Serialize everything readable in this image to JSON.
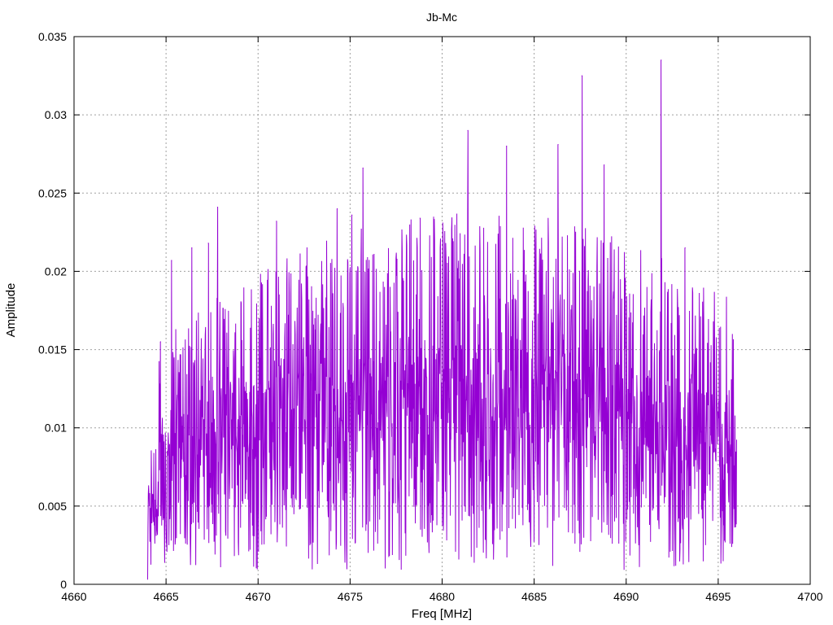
{
  "chart_data": {
    "type": "line",
    "title": "Jb-Mc",
    "xlabel": "Freq [MHz]",
    "ylabel": "Amplitude",
    "xlim": [
      4660,
      4700
    ],
    "ylim": [
      0,
      0.035
    ],
    "x_ticks": [
      4660,
      4665,
      4670,
      4675,
      4680,
      4685,
      4690,
      4695,
      4700
    ],
    "x_tick_labels": [
      "4660",
      "4665",
      "4670",
      "4675",
      "4680",
      "4685",
      "4690",
      "4695",
      "4700"
    ],
    "y_ticks": [
      0,
      0.005,
      0.01,
      0.015,
      0.02,
      0.025,
      0.03,
      0.035
    ],
    "y_tick_labels": [
      "0",
      "0.005",
      "0.01",
      "0.015",
      "0.02",
      "0.025",
      "0.03",
      "0.035"
    ],
    "grid": true,
    "legend": false,
    "series": [
      {
        "color": "#9400d3",
        "x_start": 4664.0,
        "x_end": 4696.0,
        "notable_peaks": [
          {
            "x": 4664.7,
            "y": 0.0155
          },
          {
            "x": 4665.3,
            "y": 0.0207
          },
          {
            "x": 4666.4,
            "y": 0.0215
          },
          {
            "x": 4667.3,
            "y": 0.0218
          },
          {
            "x": 4667.8,
            "y": 0.0241
          },
          {
            "x": 4671.0,
            "y": 0.0232
          },
          {
            "x": 4674.3,
            "y": 0.024
          },
          {
            "x": 4675.1,
            "y": 0.0236
          },
          {
            "x": 4675.7,
            "y": 0.0266
          },
          {
            "x": 4678.8,
            "y": 0.0234
          },
          {
            "x": 4681.4,
            "y": 0.029
          },
          {
            "x": 4683.5,
            "y": 0.028
          },
          {
            "x": 4686.3,
            "y": 0.0281
          },
          {
            "x": 4687.6,
            "y": 0.0325
          },
          {
            "x": 4688.8,
            "y": 0.0268
          },
          {
            "x": 4691.9,
            "y": 0.0335
          },
          {
            "x": 4693.2,
            "y": 0.0215
          },
          {
            "x": 4694.8,
            "y": 0.0146
          }
        ],
        "low_envelope": 0.0025,
        "typical_range": [
          0.003,
          0.018
        ]
      }
    ]
  }
}
